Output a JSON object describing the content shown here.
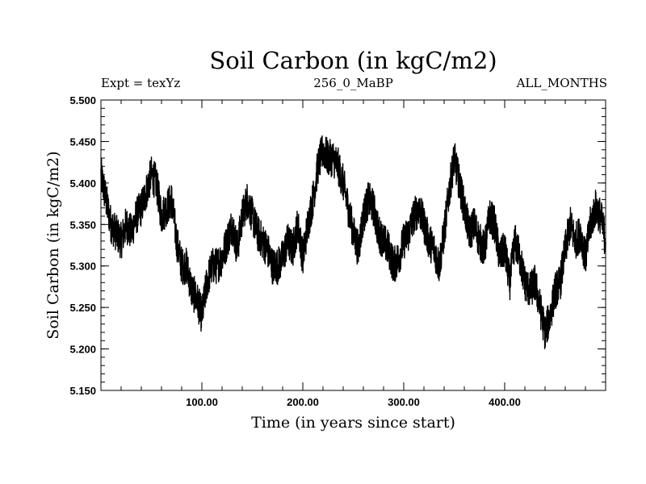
{
  "chart_data": {
    "type": "line",
    "title": "Soil Carbon (in kgC/m2)",
    "subtitle_left": "Expt = texYz",
    "subtitle_center": "256_0_MaBP",
    "subtitle_right": "ALL_MONTHS",
    "xlabel": "Time (in years since start)",
    "ylabel": "Soil Carbon (in kgC/m2)",
    "xlim": [
      0,
      500
    ],
    "ylim": [
      5.15,
      5.5
    ],
    "x_ticks": [
      100,
      200,
      300,
      400
    ],
    "x_tick_labels": [
      "100.00",
      "200.00",
      "300.00",
      "400.00"
    ],
    "y_ticks": [
      5.15,
      5.2,
      5.25,
      5.3,
      5.35,
      5.4,
      5.45,
      5.5
    ],
    "y_tick_labels": [
      "5.150",
      "5.200",
      "5.250",
      "5.300",
      "5.350",
      "5.400",
      "5.450",
      "5.500"
    ],
    "grid": false,
    "series": [
      {
        "color": "#000000",
        "x": [
          0,
          5,
          10,
          15,
          20,
          25,
          30,
          35,
          40,
          45,
          50,
          55,
          60,
          65,
          70,
          75,
          80,
          85,
          90,
          95,
          100,
          105,
          110,
          115,
          120,
          125,
          130,
          135,
          140,
          145,
          150,
          155,
          160,
          165,
          170,
          175,
          180,
          185,
          190,
          195,
          200,
          205,
          210,
          215,
          220,
          225,
          230,
          235,
          240,
          245,
          250,
          255,
          260,
          265,
          270,
          275,
          280,
          285,
          290,
          295,
          300,
          305,
          310,
          315,
          320,
          325,
          330,
          335,
          340,
          345,
          350,
          355,
          360,
          365,
          370,
          375,
          380,
          385,
          390,
          395,
          400,
          405,
          410,
          415,
          420,
          425,
          430,
          435,
          440,
          445,
          450,
          455,
          460,
          465,
          470,
          475,
          480,
          485,
          490,
          495,
          500
        ],
        "y": [
          5.41,
          5.38,
          5.35,
          5.34,
          5.33,
          5.35,
          5.34,
          5.36,
          5.37,
          5.39,
          5.41,
          5.4,
          5.36,
          5.37,
          5.38,
          5.33,
          5.3,
          5.3,
          5.27,
          5.26,
          5.24,
          5.28,
          5.3,
          5.3,
          5.31,
          5.33,
          5.35,
          5.32,
          5.36,
          5.38,
          5.36,
          5.34,
          5.33,
          5.32,
          5.3,
          5.3,
          5.31,
          5.33,
          5.32,
          5.35,
          5.31,
          5.35,
          5.38,
          5.42,
          5.44,
          5.43,
          5.43,
          5.42,
          5.4,
          5.37,
          5.34,
          5.32,
          5.36,
          5.38,
          5.37,
          5.34,
          5.33,
          5.32,
          5.3,
          5.31,
          5.33,
          5.34,
          5.36,
          5.37,
          5.35,
          5.33,
          5.32,
          5.3,
          5.34,
          5.39,
          5.43,
          5.4,
          5.37,
          5.34,
          5.35,
          5.33,
          5.32,
          5.36,
          5.35,
          5.31,
          5.32,
          5.28,
          5.33,
          5.31,
          5.28,
          5.27,
          5.28,
          5.25,
          5.22,
          5.24,
          5.27,
          5.28,
          5.32,
          5.35,
          5.33,
          5.34,
          5.31,
          5.35,
          5.37,
          5.36,
          5.33
        ]
      }
    ]
  }
}
